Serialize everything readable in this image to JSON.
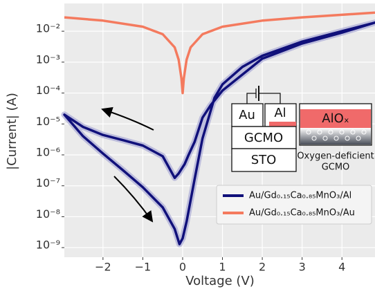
{
  "chart_data": {
    "type": "line",
    "x_label": "Voltage (V)",
    "y_label": "|Current| (A)",
    "log_y": true,
    "grid": true,
    "legend_position": "lower right",
    "xlim": [
      -2.97,
      4.83
    ],
    "xticks": [
      {
        "value": -2,
        "label": "−2"
      },
      {
        "value": -1,
        "label": "−1"
      },
      0,
      1,
      2,
      3,
      4
    ],
    "ylim": [
      4.9e-10,
      0.079
    ],
    "yticks": [
      {
        "value": 1e-09,
        "label": "10⁻⁹"
      },
      {
        "value": 1e-08,
        "label": "10⁻⁸"
      },
      {
        "value": 1e-07,
        "label": "10⁻⁷"
      },
      {
        "value": 1e-06,
        "label": "10⁻⁶"
      },
      {
        "value": 1e-05,
        "label": "10⁻⁵"
      },
      {
        "value": 0.0001,
        "label": "10⁻⁴"
      },
      {
        "value": 0.001,
        "label": "10⁻³"
      },
      {
        "value": 0.01,
        "label": "10⁻²"
      }
    ],
    "series": [
      {
        "name": "Au/Gd₀.₁₅Ca₀.₈₅MnO₃/Al",
        "color": "#10107a",
        "x": [
          0,
          -0.1,
          -0.2,
          -0.5,
          -1,
          -1.5,
          -2,
          -2.5,
          -2.97,
          -2.5,
          -2,
          -1.5,
          -1,
          -0.5,
          -0.2,
          -0.08,
          0,
          0.1,
          0.3,
          0.5,
          0.8,
          1,
          1.5,
          2,
          3,
          4,
          4.83,
          4,
          3,
          2,
          1,
          0.7,
          0.5,
          0.3,
          0.15,
          0.05,
          0
        ],
        "values": [
          4e-07,
          2.5e-07,
          1.8e-07,
          9e-07,
          2e-06,
          3e-06,
          4.4e-06,
          8e-06,
          2e-05,
          4e-06,
          1.1e-06,
          3.2e-07,
          9e-08,
          2e-08,
          4e-09,
          1.3e-09,
          2e-09,
          7e-09,
          1.6e-07,
          3.4e-06,
          7e-05,
          0.00019,
          0.0007,
          0.0016,
          0.0046,
          0.01,
          0.019,
          0.009,
          0.004,
          0.0013,
          0.00012,
          4e-05,
          1.6e-05,
          2.6e-06,
          1e-06,
          5e-07,
          4e-07
        ]
      },
      {
        "name": "Au/Gd₀.₁₅Ca₀.₈₅MnO₃/Au",
        "color": "#f47a5e",
        "x": [
          -2.97,
          -2,
          -1,
          -0.5,
          -0.2,
          -0.1,
          -0.03,
          0,
          0.03,
          0.1,
          0.2,
          0.5,
          1,
          2,
          3,
          4,
          4.83
        ],
        "values": [
          0.028,
          0.022,
          0.014,
          0.008,
          0.003,
          0.0012,
          0.0003,
          0.0001,
          0.0003,
          0.0012,
          0.003,
          0.008,
          0.014,
          0.022,
          0.028,
          0.034,
          0.04
        ]
      }
    ],
    "schematic_labels": [
      "Au",
      "Al",
      "GCMO",
      "STO",
      "AlOₓ",
      "Oxygen-deficient",
      "GCMO"
    ]
  }
}
